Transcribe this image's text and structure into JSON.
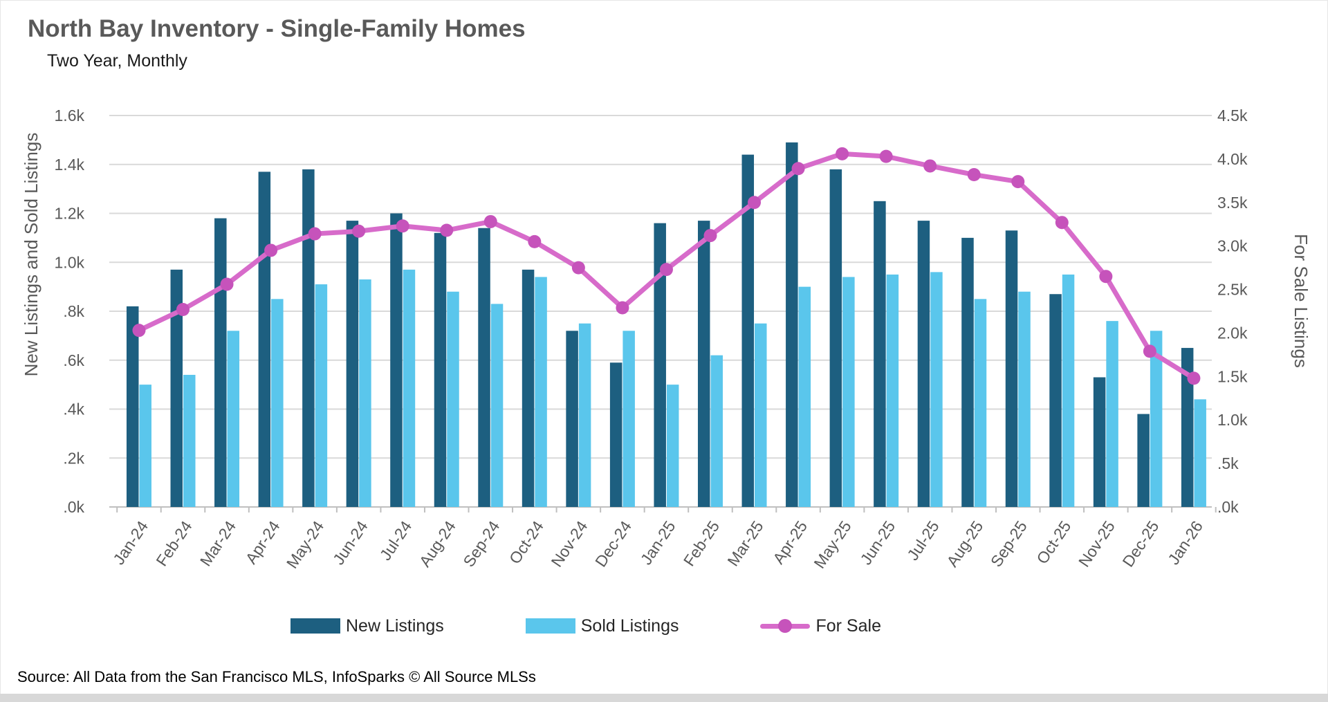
{
  "page": {
    "title": "North Bay Inventory - Single-Family Homes",
    "subtitle": "Two Year, Monthly",
    "source": "Source: All Data from the San Francisco MLS, InfoSparks © All Source MLSs"
  },
  "colors": {
    "new_listings": "#1d5f80",
    "sold_listings": "#5ac6ec",
    "for_sale_line": "#d76bca",
    "for_sale_marker": "#c653bb",
    "gridline": "#d9d9d9",
    "axis_line": "#bfbfbf",
    "tick_text": "#595959",
    "axis_title_text": "#595959",
    "title_text": "#595959"
  },
  "legend": [
    {
      "label": "New Listings",
      "type": "bar",
      "color": "#1d5f80"
    },
    {
      "label": "Sold Listings",
      "type": "bar",
      "color": "#5ac6ec"
    },
    {
      "label": "For Sale",
      "type": "line",
      "color": "#d76bca",
      "marker_color": "#c653bb"
    }
  ],
  "chart_data": {
    "type": "bar",
    "title": "North Bay Inventory - Single-Family Homes",
    "subtitle": "Two Year, Monthly",
    "grid": true,
    "legend_position": "bottom",
    "categories": [
      "Jan-24",
      "Feb-24",
      "Mar-24",
      "Apr-24",
      "May-24",
      "Jun-24",
      "Jul-24",
      "Aug-24",
      "Sep-24",
      "Oct-24",
      "Nov-24",
      "Dec-24",
      "Jan-25",
      "Feb-25",
      "Mar-25",
      "Apr-25",
      "May-25",
      "Jun-25",
      "Jul-25",
      "Aug-25",
      "Sep-25",
      "Oct-25",
      "Nov-25",
      "Dec-25",
      "Jan-26"
    ],
    "series": [
      {
        "name": "New Listings",
        "type": "bar",
        "axis": "left",
        "units": "thousands",
        "values": [
          0.82,
          0.97,
          1.18,
          1.37,
          1.38,
          1.17,
          1.2,
          1.12,
          1.14,
          0.97,
          0.72,
          0.59,
          1.16,
          1.17,
          1.44,
          1.49,
          1.38,
          1.25,
          1.17,
          1.1,
          1.13,
          0.87,
          0.53,
          0.38,
          0.65
        ]
      },
      {
        "name": "Sold Listings",
        "type": "bar",
        "axis": "left",
        "units": "thousands",
        "values": [
          0.5,
          0.54,
          0.72,
          0.85,
          0.91,
          0.93,
          0.97,
          0.88,
          0.83,
          0.94,
          0.75,
          0.72,
          0.5,
          0.62,
          0.75,
          0.9,
          0.94,
          0.95,
          0.96,
          0.85,
          0.88,
          0.95,
          0.76,
          0.72,
          0.44
        ]
      },
      {
        "name": "For Sale",
        "type": "line",
        "axis": "right",
        "units": "thousands",
        "values": [
          2.03,
          2.27,
          2.56,
          2.95,
          3.14,
          3.17,
          3.23,
          3.18,
          3.28,
          3.05,
          2.75,
          2.29,
          2.73,
          3.12,
          3.5,
          3.89,
          4.06,
          4.03,
          3.92,
          3.82,
          3.74,
          3.27,
          2.65,
          1.79,
          1.48
        ]
      }
    ],
    "left_axis": {
      "label": "New Listings and Sold Listings",
      "min": 0,
      "max": 1.6,
      "ticks": [
        {
          "label": "1.6k",
          "value": 1.6
        },
        {
          "label": "1.4k",
          "value": 1.4
        },
        {
          "label": "1.2k",
          "value": 1.2
        },
        {
          "label": "1.0k",
          "value": 1.0
        },
        {
          "label": ".8k",
          "value": 0.8
        },
        {
          "label": ".6k",
          "value": 0.6
        },
        {
          "label": ".4k",
          "value": 0.4
        },
        {
          "label": ".2k",
          "value": 0.2
        },
        {
          "label": ".0k",
          "value": 0.0
        }
      ]
    },
    "right_axis": {
      "label": "For Sale Listings",
      "min": 0,
      "max": 4.5,
      "ticks": [
        {
          "label": "4.5k",
          "value": 4.5
        },
        {
          "label": "4.0k",
          "value": 4.0
        },
        {
          "label": "3.5k",
          "value": 3.5
        },
        {
          "label": "3.0k",
          "value": 3.0
        },
        {
          "label": "2.5k",
          "value": 2.5
        },
        {
          "label": "2.0k",
          "value": 2.0
        },
        {
          "label": "1.5k",
          "value": 1.5
        },
        {
          "label": "1.0k",
          "value": 1.0
        },
        {
          "label": ".5k",
          "value": 0.5
        },
        {
          "label": ".0k",
          "value": 0.0
        }
      ]
    }
  }
}
